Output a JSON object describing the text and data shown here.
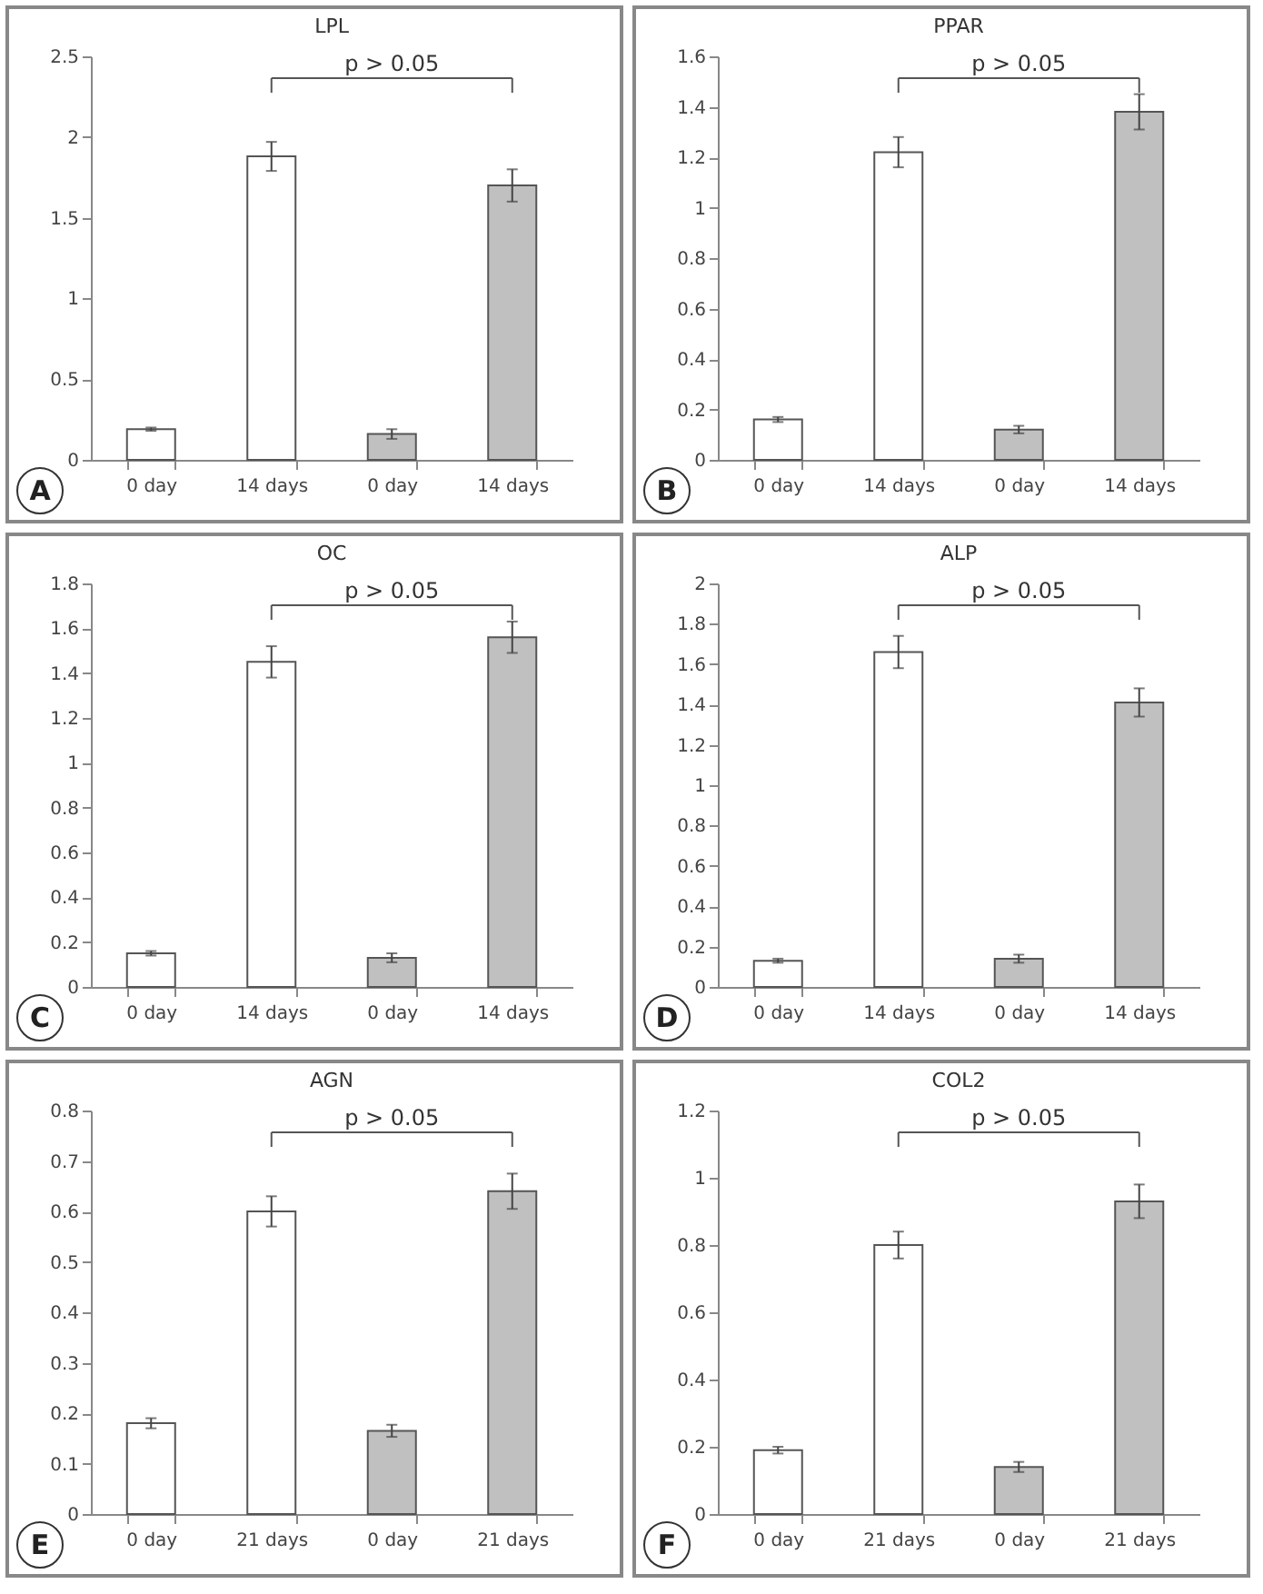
{
  "chart_data": [
    {
      "type": "bar",
      "title": "LPL",
      "categories": [
        "0 day",
        "14 days",
        "0 day",
        "14 days"
      ],
      "values": [
        0.19,
        1.88,
        0.16,
        1.7
      ],
      "errors": [
        0.01,
        0.09,
        0.03,
        0.1
      ],
      "colors": [
        "#ffffff",
        "#ffffff",
        "#c0c0c0",
        "#c0c0c0"
      ],
      "ylim": [
        0,
        2.5
      ],
      "yticks": [
        0,
        0.5,
        1,
        1.5,
        2,
        2.5
      ],
      "grid": false,
      "annotations": [
        "A",
        "p > 0.05"
      ]
    },
    {
      "type": "bar",
      "title": "PPAR",
      "categories": [
        "0 day",
        "14 days",
        "0 day",
        "14 days"
      ],
      "values": [
        0.16,
        1.22,
        0.12,
        1.38
      ],
      "errors": [
        0.01,
        0.06,
        0.015,
        0.07
      ],
      "colors": [
        "#ffffff",
        "#ffffff",
        "#c0c0c0",
        "#c0c0c0"
      ],
      "ylim": [
        0,
        1.6
      ],
      "yticks": [
        0,
        0.2,
        0.4,
        0.6,
        0.8,
        1,
        1.2,
        1.4,
        1.6
      ],
      "grid": false,
      "annotations": [
        "B",
        "p > 0.05"
      ]
    },
    {
      "type": "bar",
      "title": "OC",
      "categories": [
        "0 day",
        "14 days",
        "0 day",
        "14 days"
      ],
      "values": [
        0.15,
        1.45,
        0.13,
        1.56
      ],
      "errors": [
        0.01,
        0.07,
        0.02,
        0.07
      ],
      "colors": [
        "#ffffff",
        "#ffffff",
        "#c0c0c0",
        "#c0c0c0"
      ],
      "ylim": [
        0,
        1.8
      ],
      "yticks": [
        0,
        0.2,
        0.4,
        0.6,
        0.8,
        1,
        1.2,
        1.4,
        1.6,
        1.8
      ],
      "grid": false,
      "annotations": [
        "C",
        "p > 0.05"
      ]
    },
    {
      "type": "bar",
      "title": "ALP",
      "categories": [
        "0 day",
        "14 days",
        "0 day",
        "14 days"
      ],
      "values": [
        0.13,
        1.66,
        0.14,
        1.41
      ],
      "errors": [
        0.01,
        0.08,
        0.02,
        0.07
      ],
      "colors": [
        "#ffffff",
        "#ffffff",
        "#c0c0c0",
        "#c0c0c0"
      ],
      "ylim": [
        0,
        2
      ],
      "yticks": [
        0,
        0.2,
        0.4,
        0.6,
        0.8,
        1,
        1.2,
        1.4,
        1.6,
        1.8,
        2
      ],
      "grid": false,
      "annotations": [
        "D",
        "p > 0.05"
      ]
    },
    {
      "type": "bar",
      "title": "AGN",
      "categories": [
        "0 day",
        "21 days",
        "0 day",
        "21 days"
      ],
      "values": [
        0.18,
        0.6,
        0.165,
        0.64
      ],
      "errors": [
        0.01,
        0.03,
        0.012,
        0.035
      ],
      "colors": [
        "#ffffff",
        "#ffffff",
        "#c0c0c0",
        "#c0c0c0"
      ],
      "ylim": [
        0,
        0.8
      ],
      "yticks": [
        0,
        0.1,
        0.2,
        0.3,
        0.4,
        0.5,
        0.6,
        0.7,
        0.8
      ],
      "grid": false,
      "annotations": [
        "E",
        "p > 0.05"
      ]
    },
    {
      "type": "bar",
      "title": "COL2",
      "categories": [
        "0 day",
        "21 days",
        "0 day",
        "21 days"
      ],
      "values": [
        0.19,
        0.8,
        0.14,
        0.93
      ],
      "errors": [
        0.01,
        0.04,
        0.015,
        0.05
      ],
      "colors": [
        "#ffffff",
        "#ffffff",
        "#c0c0c0",
        "#c0c0c0"
      ],
      "ylim": [
        0,
        1.2
      ],
      "yticks": [
        0,
        0.2,
        0.4,
        0.6,
        0.8,
        1,
        1.2
      ],
      "grid": false,
      "annotations": [
        "F",
        "p > 0.05"
      ]
    }
  ]
}
